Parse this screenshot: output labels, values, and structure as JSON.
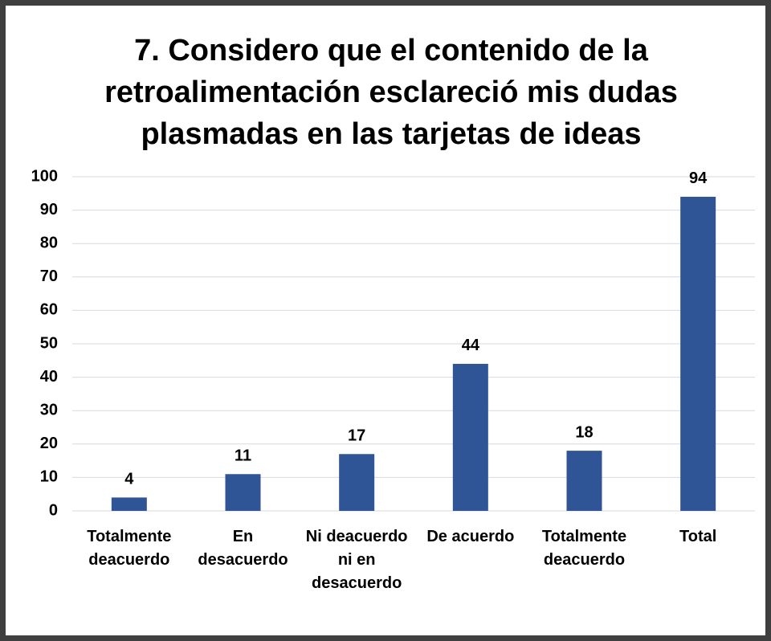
{
  "chart_data": {
    "type": "bar",
    "title": "7. Considero que el contenido de la retroalimentación esclareció mis dudas plasmadas en las tarjetas de ideas",
    "categories": [
      "Totalmente deacuerdo",
      "En desacuerdo",
      "Ni deacuerdo ni en desacuerdo",
      "De acuerdo",
      "Totalmente deacuerdo",
      "Total"
    ],
    "values": [
      4,
      11,
      17,
      44,
      18,
      94
    ],
    "color": "#2f5597",
    "ylim": [
      0,
      100
    ],
    "yticks": [
      0,
      10,
      20,
      30,
      40,
      50,
      60,
      70,
      80,
      90,
      100
    ],
    "grid": true
  }
}
